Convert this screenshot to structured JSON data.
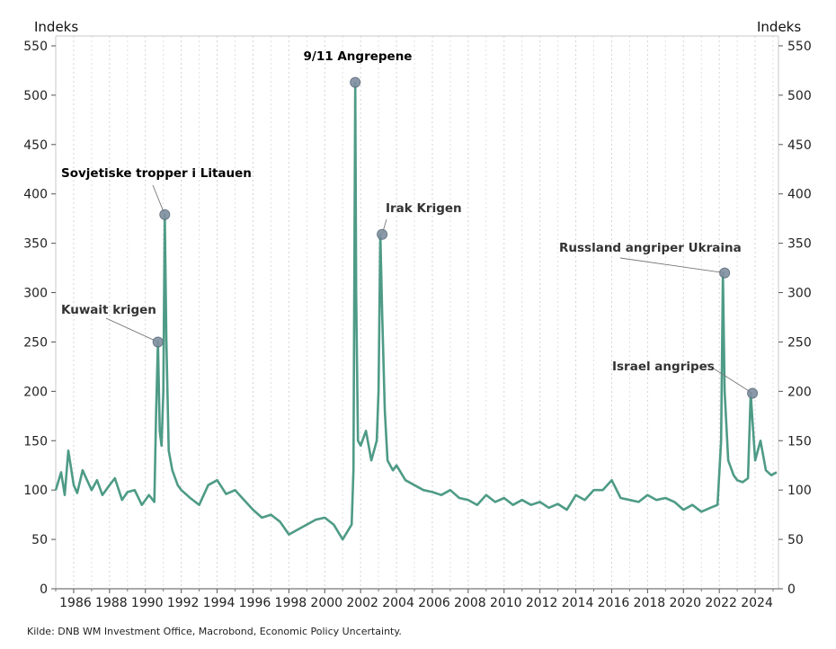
{
  "chart_data": {
    "type": "line",
    "y_unit_left": "Indeks",
    "y_unit_right": "Indeks",
    "source": "Kilde: DNB WM Investment Office, Macrobond, Economic Policy Uncertainty.",
    "ylim": [
      0,
      560
    ],
    "xlim": [
      1985.0,
      2025.3
    ],
    "y_ticks": [
      "0",
      "50",
      "100",
      "150",
      "200",
      "250",
      "300",
      "350",
      "400",
      "450",
      "500",
      "550"
    ],
    "x_ticks": [
      "1986",
      "1988",
      "1990",
      "1992",
      "1994",
      "1996",
      "1998",
      "2000",
      "2002",
      "2004",
      "2006",
      "2008",
      "2010",
      "2012",
      "2014",
      "2016",
      "2018",
      "2020",
      "2022",
      "2024"
    ],
    "grid": "vertical-dotted",
    "line_color": "#4e9b86",
    "series": [
      {
        "x": [
          1985.0,
          1985.3,
          1985.5,
          1985.7,
          1986.0,
          1986.2,
          1986.5,
          1986.8,
          1987.0,
          1987.3,
          1987.6,
          1988.0,
          1988.3,
          1988.7,
          1989.0,
          1989.4,
          1989.8,
          1990.2,
          1990.5,
          1990.6,
          1990.7,
          1990.8,
          1990.9,
          1991.0,
          1991.08,
          1991.17,
          1991.3,
          1991.5,
          1991.8,
          1992.0,
          1992.5,
          1993.0,
          1993.5,
          1994.0,
          1994.5,
          1995.0,
          1995.5,
          1996.0,
          1996.5,
          1997.0,
          1997.5,
          1998.0,
          1998.5,
          1999.0,
          1999.5,
          2000.0,
          2000.5,
          2001.0,
          2001.5,
          2001.6,
          2001.7,
          2001.75,
          2001.85,
          2002.0,
          2002.3,
          2002.6,
          2002.9,
          2003.0,
          2003.1,
          2003.2,
          2003.35,
          2003.5,
          2003.8,
          2004.0,
          2004.5,
          2005.0,
          2005.5,
          2006.0,
          2006.5,
          2007.0,
          2007.5,
          2008.0,
          2008.5,
          2009.0,
          2009.5,
          2010.0,
          2010.5,
          2011.0,
          2011.5,
          2012.0,
          2012.5,
          2013.0,
          2013.5,
          2014.0,
          2014.5,
          2015.0,
          2015.5,
          2016.0,
          2016.5,
          2017.0,
          2017.5,
          2018.0,
          2018.5,
          2019.0,
          2019.5,
          2020.0,
          2020.5,
          2021.0,
          2021.5,
          2021.9,
          2022.1,
          2022.2,
          2022.3,
          2022.5,
          2022.8,
          2023.0,
          2023.3,
          2023.6,
          2023.75,
          2023.85,
          2024.0,
          2024.3,
          2024.6,
          2024.9,
          2025.2
        ],
        "y": [
          100,
          118,
          95,
          140,
          105,
          97,
          120,
          108,
          100,
          110,
          95,
          105,
          112,
          90,
          98,
          100,
          85,
          95,
          88,
          180,
          250,
          160,
          145,
          200,
          379,
          250,
          140,
          120,
          105,
          100,
          92,
          85,
          105,
          110,
          96,
          100,
          90,
          80,
          72,
          75,
          68,
          55,
          60,
          65,
          70,
          72,
          65,
          50,
          65,
          120,
          513,
          300,
          150,
          145,
          160,
          130,
          150,
          200,
          359,
          280,
          180,
          130,
          120,
          125,
          110,
          105,
          100,
          98,
          95,
          100,
          92,
          90,
          85,
          95,
          88,
          92,
          85,
          90,
          85,
          88,
          82,
          86,
          80,
          95,
          90,
          100,
          100,
          110,
          92,
          90,
          88,
          95,
          90,
          92,
          88,
          80,
          85,
          78,
          82,
          85,
          150,
          320,
          200,
          130,
          115,
          110,
          108,
          112,
          198,
          170,
          130,
          150,
          120,
          115,
          118
        ]
      }
    ],
    "annotations": [
      {
        "label": "Kuwait krigen",
        "x": 1990.7,
        "y": 250
      },
      {
        "label": "Sovjetiske tropper i Litauen",
        "x": 1991.08,
        "y": 379
      },
      {
        "label": "9/11 Angrepene",
        "x": 2001.7,
        "y": 513
      },
      {
        "label": "Irak Krigen",
        "x": 2003.2,
        "y": 359
      },
      {
        "label": "Russland angriper Ukraina",
        "x": 2022.3,
        "y": 320
      },
      {
        "label": "Israel angripes",
        "x": 2023.85,
        "y": 198
      }
    ]
  }
}
